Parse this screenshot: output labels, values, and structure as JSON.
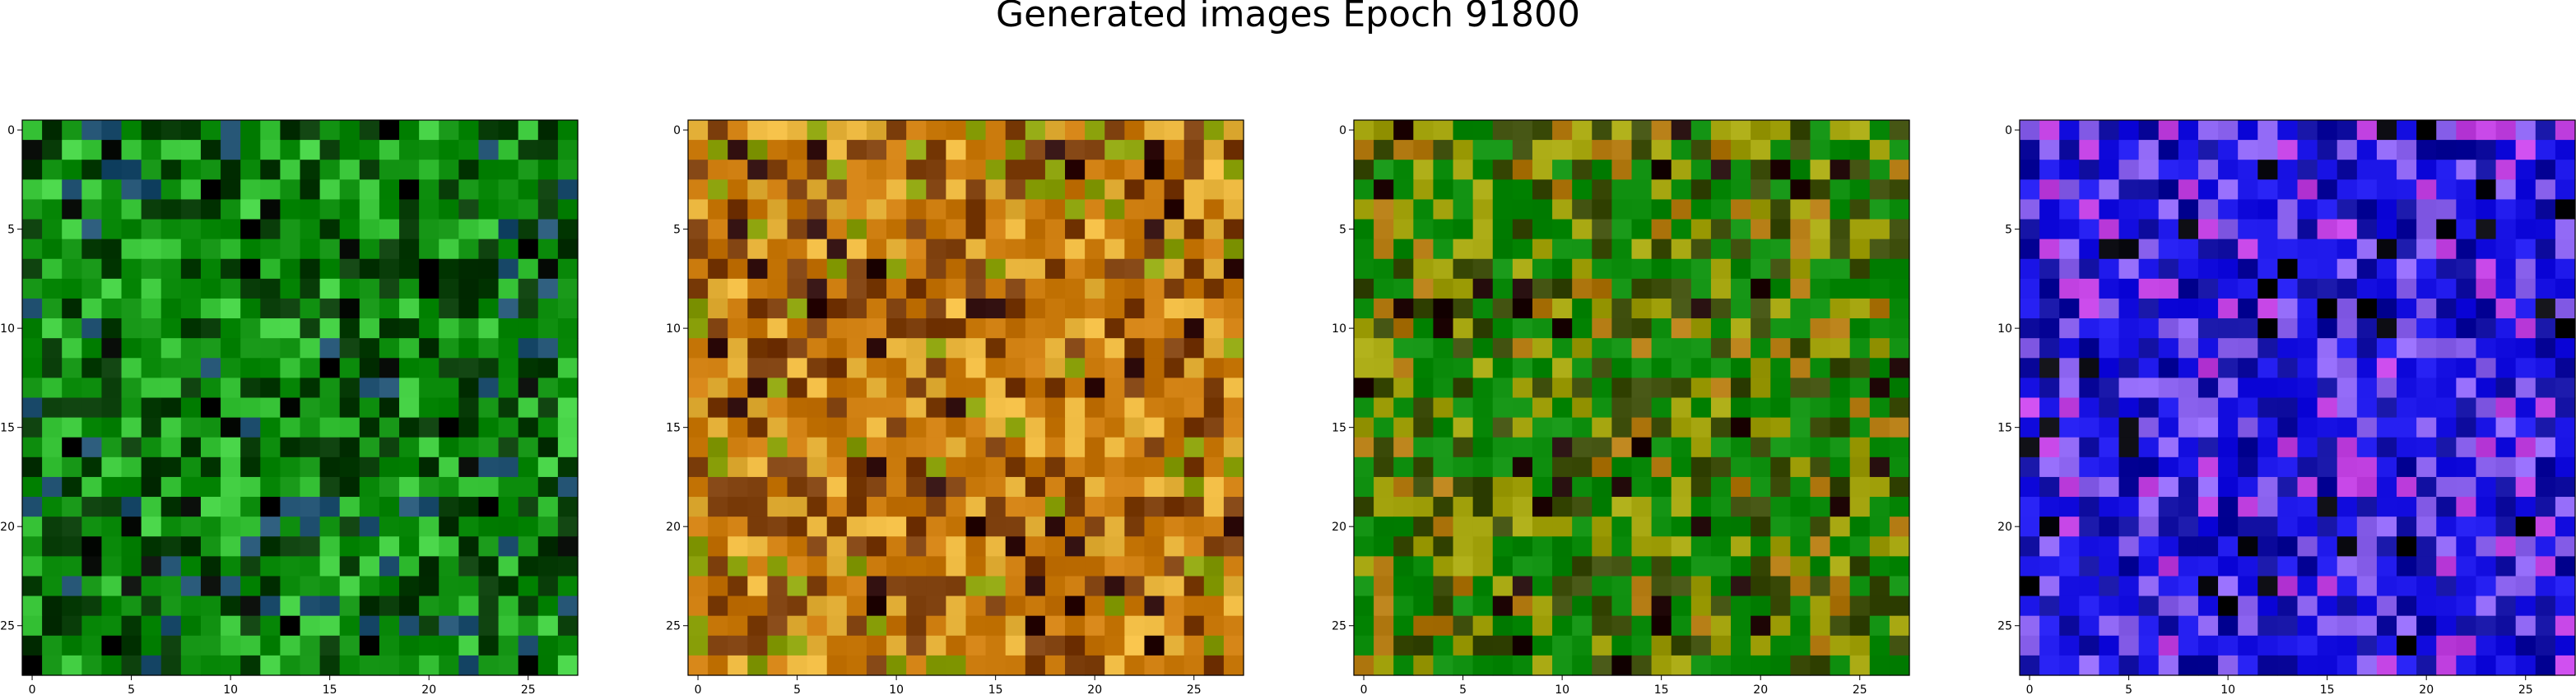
{
  "figure": {
    "title": "Generated images Epoch 91800"
  },
  "chart_data": [
    {
      "type": "heatmap",
      "rows": 28,
      "cols": 28,
      "x_ticks": [
        "0",
        "5",
        "10",
        "15",
        "20",
        "25"
      ],
      "y_ticks": [
        "0",
        "5",
        "10",
        "15",
        "20",
        "25"
      ],
      "colors": {
        "base": "#0a8a0a",
        "dark": "#043804",
        "light": "#3cc83c",
        "accent": "#1f4f6f",
        "black": "#020602"
      },
      "seed": 11
    },
    {
      "type": "heatmap",
      "rows": 28,
      "cols": 28,
      "x_ticks": [
        "0",
        "5",
        "10",
        "15",
        "20",
        "25"
      ],
      "y_ticks": [
        "0",
        "5",
        "10",
        "15",
        "20",
        "25"
      ],
      "colors": {
        "base": "#c8780a",
        "dark": "#7a3c0a",
        "light": "#e8b43c",
        "accent": "#8aa00a",
        "black": "#2a0808"
      },
      "seed": 23
    },
    {
      "type": "heatmap",
      "rows": 28,
      "cols": 28,
      "x_ticks": [
        "0",
        "5",
        "10",
        "15",
        "20",
        "25"
      ],
      "y_ticks": [
        "0",
        "5",
        "10",
        "15",
        "20",
        "25"
      ],
      "colors": {
        "base": "#0a8a0a",
        "dark": "#3a4a08",
        "light": "#a0a00a",
        "accent": "#b07810",
        "black": "#200808"
      },
      "seed": 37
    },
    {
      "type": "heatmap",
      "rows": 28,
      "cols": 28,
      "x_ticks": [
        "0",
        "5",
        "10",
        "15",
        "20",
        "25"
      ],
      "y_ticks": [
        "0",
        "5",
        "10",
        "15",
        "20",
        "25"
      ],
      "colors": {
        "base": "#1a14e6",
        "dark": "#0c0a9c",
        "light": "#8c64f0",
        "accent": "#c040e0",
        "black": "#04040a"
      },
      "seed": 53
    }
  ]
}
